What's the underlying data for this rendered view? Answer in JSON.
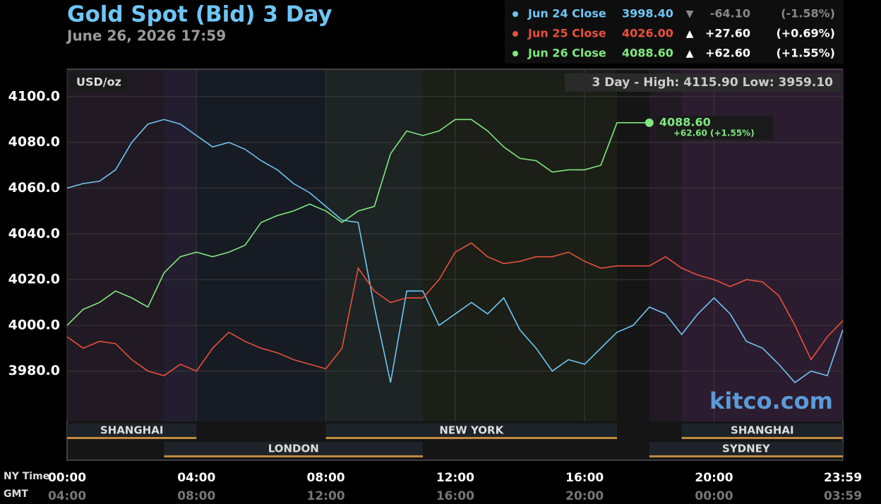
{
  "chart_data": {
    "type": "line",
    "title": "Gold Spot (Bid) 3 Day",
    "subtitle": "June 26, 2026 17:59",
    "unit_label": "USD/oz",
    "range_text": "3 Day - High: 4115.90  Low: 3959.10",
    "watermark": "kitco.com",
    "x_axis_label": "NY Time",
    "x2_axis_label": "GMT",
    "x": [
      0,
      0.5,
      1,
      1.5,
      2,
      2.5,
      3,
      3.5,
      4,
      4.5,
      5,
      5.5,
      6,
      6.5,
      7,
      7.5,
      8,
      8.5,
      9,
      9.5,
      10,
      10.5,
      11,
      11.5,
      12,
      12.5,
      13,
      13.5,
      14,
      14.5,
      15,
      15.5,
      16,
      16.5,
      17,
      17.5,
      18,
      18.5,
      19,
      19.5,
      20,
      20.5,
      21,
      21.5,
      22,
      22.5,
      23,
      23.5,
      23.98
    ],
    "series": [
      {
        "name": "Jun 24 Close",
        "color": "#6ec6f5",
        "close": "3998.40",
        "arrow": "▼",
        "change": "-64.10",
        "pct": "(-1.58%)",
        "values": [
          4060,
          4062,
          4063,
          4068,
          4080,
          4088,
          4090,
          4088,
          4083,
          4078,
          4080,
          4077,
          4072,
          4068,
          4062,
          4058,
          4052,
          4046,
          4045,
          4008,
          3975,
          4015,
          4015,
          4000,
          4005,
          4010,
          4005,
          4012,
          3998,
          3990,
          3980,
          3985,
          3983,
          3990,
          3997,
          4000,
          4008,
          4005,
          3996,
          4005,
          4012,
          4005,
          3993,
          3990,
          3983,
          3975,
          3980,
          3978,
          3998
        ]
      },
      {
        "name": "Jun 25 Close",
        "color": "#e8503a",
        "close": "4026.00",
        "arrow": "▲",
        "change": "+27.60",
        "pct": "(+0.69%)",
        "values": [
          3995,
          3990,
          3993,
          3992,
          3985,
          3980,
          3978,
          3983,
          3980,
          3990,
          3997,
          3993,
          3990,
          3988,
          3985,
          3983,
          3981,
          3990,
          4025,
          4015,
          4010,
          4012,
          4012,
          4020,
          4032,
          4036,
          4030,
          4027,
          4028,
          4030,
          4030,
          4032,
          4028,
          4025,
          4026,
          4026,
          4026,
          4030,
          4025,
          4022,
          4020,
          4017,
          4020,
          4019,
          4013,
          4000,
          3985,
          3995,
          4002
        ]
      },
      {
        "name": "Jun 26 Close",
        "color": "#7ee87e",
        "close": "4088.60",
        "arrow": "▲",
        "change": "+62.60",
        "pct": "(+1.55%)",
        "end_label": "4088.60",
        "end_change": "+62.60 (+1.55%)",
        "values": [
          4000,
          4007,
          4010,
          4015,
          4012,
          4008,
          4023,
          4030,
          4032,
          4030,
          4032,
          4035,
          4045,
          4048,
          4050,
          4053,
          4050,
          4045,
          4050,
          4052,
          4075,
          4085,
          4083,
          4085,
          4090,
          4090,
          4085,
          4078,
          4073,
          4072,
          4067,
          4068,
          4068,
          4070,
          4088.6,
          4088.6,
          4088.6,
          null,
          null,
          null,
          null,
          null,
          null,
          null,
          null,
          null,
          null,
          null,
          null
        ]
      }
    ],
    "xlim": [
      0,
      23.983
    ],
    "xticks": [
      {
        "value": 0,
        "label": "00:00"
      },
      {
        "value": 4,
        "label": "04:00"
      },
      {
        "value": 8,
        "label": "08:00"
      },
      {
        "value": 12,
        "label": "12:00"
      },
      {
        "value": 16,
        "label": "16:00"
      },
      {
        "value": 20,
        "label": "20:00"
      },
      {
        "value": 23.983,
        "label": "23:59"
      }
    ],
    "gmt_labels": [
      "04:00",
      "08:00",
      "12:00",
      "16:00",
      "20:00",
      "00:00",
      "03:59"
    ],
    "ylim": [
      3958,
      4112
    ],
    "yticks": [
      {
        "value": 3980,
        "label": "3980.0"
      },
      {
        "value": 4000,
        "label": "4000.0"
      },
      {
        "value": 4020,
        "label": "4020.0"
      },
      {
        "value": 4040,
        "label": "4040.0"
      },
      {
        "value": 4060,
        "label": "4060.0"
      },
      {
        "value": 4080,
        "label": "4080.0"
      },
      {
        "value": 4100,
        "label": "4100.0"
      }
    ],
    "grid": true,
    "sessions": [
      {
        "name": "SHANGHAI",
        "start": 0,
        "end": 4,
        "color": "#7a3a8a"
      },
      {
        "name": "LONDON",
        "start": 3,
        "end": 11,
        "color": "#2a4a8a"
      },
      {
        "name": "NEW YORK",
        "start": 8,
        "end": 17,
        "color": "#4a6a2a"
      },
      {
        "name": "SHANGHAI",
        "start": 19,
        "end": 23.983,
        "color": "#7a3a8a"
      },
      {
        "name": "SYDNEY",
        "start": 18,
        "end": 23.983,
        "color": "#7a3a8a"
      }
    ]
  }
}
